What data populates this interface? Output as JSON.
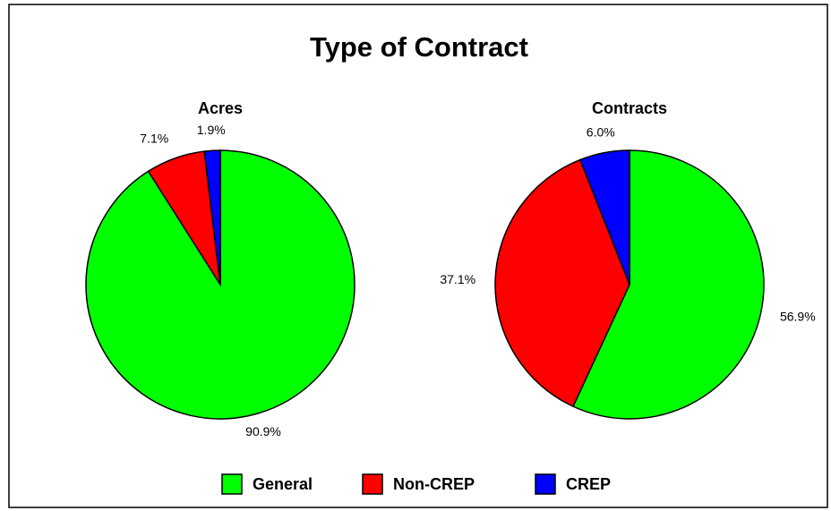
{
  "title": "Type of Contract",
  "chart_data": [
    {
      "type": "pie",
      "subtitle": "Acres",
      "categories": [
        "General",
        "Non-CREP",
        "CREP"
      ],
      "values": [
        90.9,
        7.1,
        1.9
      ],
      "value_labels": [
        "90.9%",
        "7.1%",
        "1.9%"
      ],
      "colors": [
        "#00ff00",
        "#ff0000",
        "#0000ff"
      ]
    },
    {
      "type": "pie",
      "subtitle": "Contracts",
      "categories": [
        "General",
        "Non-CREP",
        "CREP"
      ],
      "values": [
        56.9,
        37.1,
        6.0
      ],
      "value_labels": [
        "56.9%",
        "37.1%",
        "6.0%"
      ],
      "colors": [
        "#00ff00",
        "#ff0000",
        "#0000ff"
      ]
    }
  ]
}
